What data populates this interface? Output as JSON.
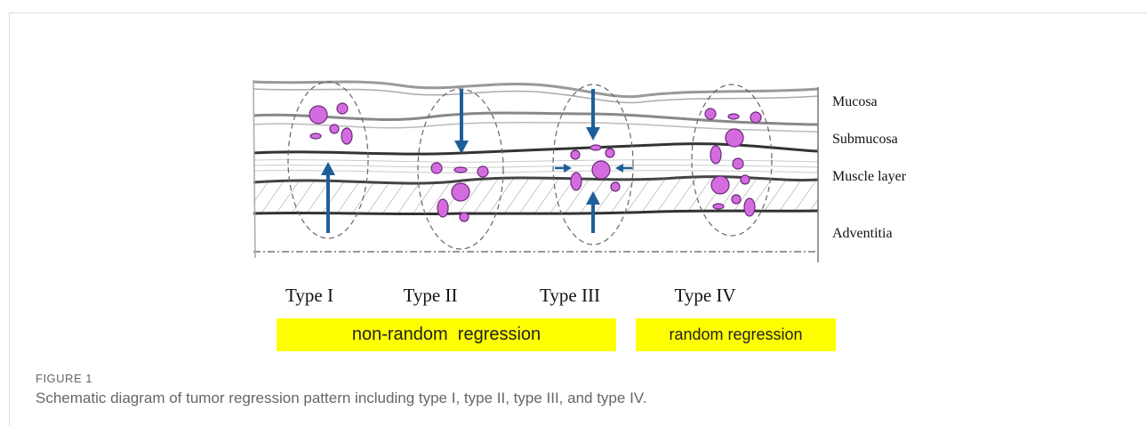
{
  "figure": {
    "layers": [
      "Mucosa",
      "Submucosa",
      "Muscle layer",
      "Adventitia"
    ],
    "types": [
      "Type I",
      "Type II",
      "Type III",
      "Type IV"
    ],
    "groups": [
      "non-random  regression",
      "random regression"
    ],
    "label": "FIGURE 1",
    "caption": "Schematic diagram of tumor regression pattern including type I, type II, type III, and type IV."
  }
}
